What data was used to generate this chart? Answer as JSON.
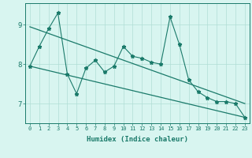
{
  "xlabel": "Humidex (Indice chaleur)",
  "x_values": [
    0,
    1,
    2,
    3,
    4,
    5,
    6,
    7,
    8,
    9,
    10,
    11,
    12,
    13,
    14,
    15,
    16,
    17,
    18,
    19,
    20,
    21,
    22,
    23
  ],
  "line1_y": [
    7.95,
    8.45,
    8.9,
    9.3,
    7.75,
    7.25,
    7.9,
    8.1,
    7.8,
    7.95,
    8.45,
    8.2,
    8.15,
    8.05,
    8.0,
    9.2,
    8.5,
    7.6,
    7.3,
    7.15,
    7.05,
    7.05,
    7.0,
    6.65
  ],
  "trend1_x": [
    0,
    23
  ],
  "trend1_y": [
    8.95,
    7.0
  ],
  "trend2_x": [
    0,
    23
  ],
  "trend2_y": [
    7.95,
    6.65
  ],
  "line_color": "#1a7a6a",
  "bg_color": "#d8f5f0",
  "grid_color": "#b0ddd5",
  "ylim": [
    6.5,
    9.55
  ],
  "yticks": [
    7,
    8,
    9
  ],
  "xlim": [
    -0.5,
    23.5
  ]
}
